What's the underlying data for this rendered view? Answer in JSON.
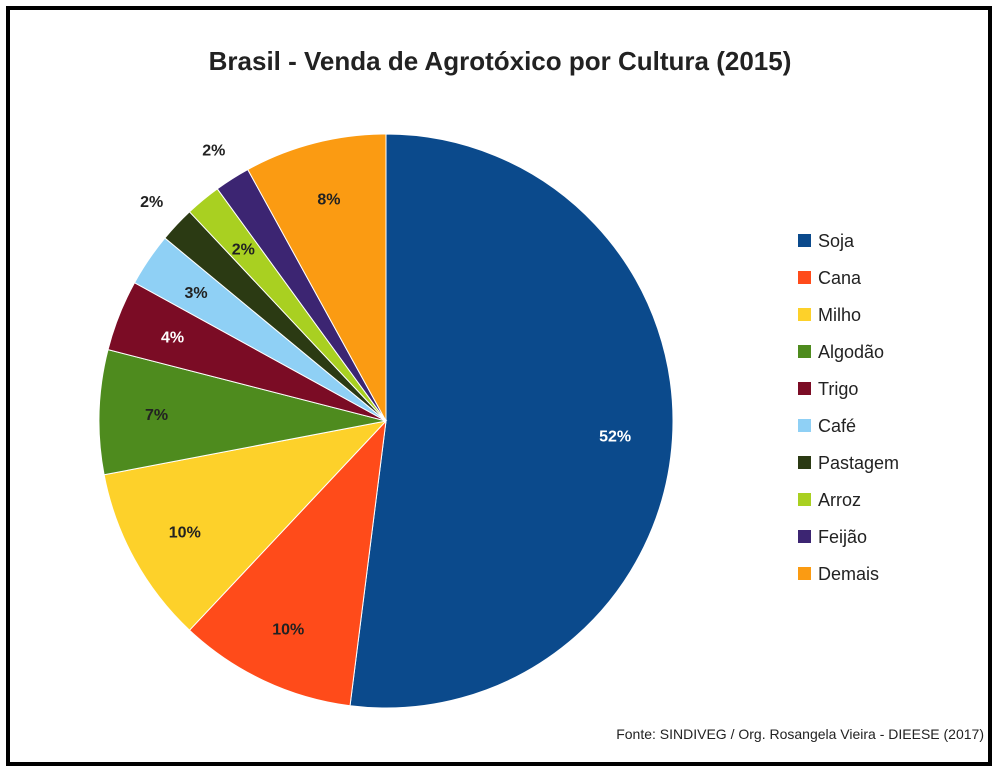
{
  "chart_data": {
    "type": "pie",
    "title": "Brasil - Venda de Agrotóxico por Cultura (2015)",
    "slices": [
      {
        "name": "Soja",
        "value": 52,
        "label": "52%",
        "color": "#0b4a8c",
        "label_color": "#ffffff"
      },
      {
        "name": "Cana",
        "value": 10,
        "label": "10%",
        "color": "#ff4b1a",
        "label_color": "#222222"
      },
      {
        "name": "Milho",
        "value": 10,
        "label": "10%",
        "color": "#fdd12a",
        "label_color": "#222222"
      },
      {
        "name": "Algodão",
        "value": 7,
        "label": "7%",
        "color": "#4e8b1e",
        "label_color": "#222222"
      },
      {
        "name": "Trigo",
        "value": 4,
        "label": "4%",
        "color": "#7b0c25",
        "label_color": "#ffffff"
      },
      {
        "name": "Café",
        "value": 3,
        "label": "3%",
        "color": "#8fd0f5",
        "label_color": "#222222"
      },
      {
        "name": "Pastagem",
        "value": 2,
        "label": "2%",
        "color": "#2b3a13",
        "label_color": "#222222"
      },
      {
        "name": "Arroz",
        "value": 2,
        "label": "2%",
        "color": "#a9d021",
        "label_color": "#222222"
      },
      {
        "name": "Feijão",
        "value": 2,
        "label": "2%",
        "color": "#3c2572",
        "label_color": "#222222"
      },
      {
        "name": "Demais",
        "value": 8,
        "label": "8%",
        "color": "#fb9b12",
        "label_color": "#222222"
      }
    ],
    "legend_position": "right"
  },
  "source": "Fonte: SINDIVEG / Org. Rosangela Vieira - DIEESE (2017)"
}
